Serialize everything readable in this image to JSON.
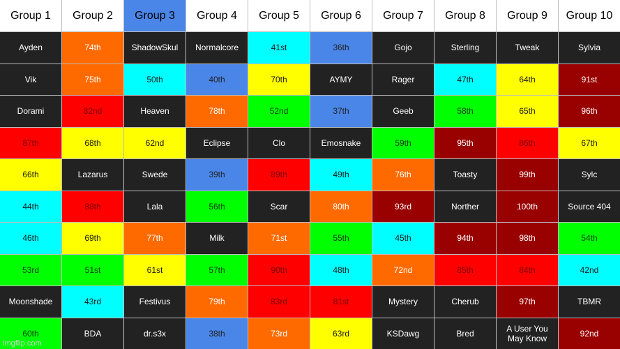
{
  "headers": [
    "Group 1",
    "Group 2",
    "Group 3",
    "Group 4",
    "Group 5",
    "Group 6",
    "Group 7",
    "Group 8",
    "Group 9",
    "Group 10"
  ],
  "highlighted_header": 2,
  "highlight_color": "#4a86e8",
  "color_legend": {
    "dark": "#222222",
    "orange": "#ff6a00",
    "blue": "#4a86e8",
    "cyan": "#00ffff",
    "yellow": "#ffff00",
    "red": "#ff0000",
    "green": "#00ff00",
    "maroon": "#990000"
  },
  "rows": [
    [
      [
        "Ayden",
        "dark"
      ],
      [
        "74th",
        "orange"
      ],
      [
        "ShadowSkul",
        "dark"
      ],
      [
        "Normalcore",
        "dark"
      ],
      [
        "41st",
        "cyan"
      ],
      [
        "36th",
        "blue"
      ],
      [
        "Gojo",
        "dark"
      ],
      [
        "Sterling",
        "dark"
      ],
      [
        "Tweak",
        "dark"
      ],
      [
        "Sylvia",
        "dark"
      ]
    ],
    [
      [
        "Vik",
        "dark"
      ],
      [
        "75th",
        "orange"
      ],
      [
        "50th",
        "cyan"
      ],
      [
        "40th",
        "blue"
      ],
      [
        "70th",
        "yellow"
      ],
      [
        "AYMY",
        "dark"
      ],
      [
        "Rager",
        "dark"
      ],
      [
        "47th",
        "cyan"
      ],
      [
        "64th",
        "yellow"
      ],
      [
        "91st",
        "maroon"
      ]
    ],
    [
      [
        "Dorami",
        "dark"
      ],
      [
        "82nd",
        "red"
      ],
      [
        "Heaven",
        "dark"
      ],
      [
        "78th",
        "orange"
      ],
      [
        "52nd",
        "green"
      ],
      [
        "37th",
        "blue"
      ],
      [
        "Geeb",
        "dark"
      ],
      [
        "58th",
        "green"
      ],
      [
        "65th",
        "yellow"
      ],
      [
        "96th",
        "maroon"
      ]
    ],
    [
      [
        "87th",
        "red"
      ],
      [
        "68th",
        "yellow"
      ],
      [
        "62nd",
        "yellow"
      ],
      [
        "Eclipse",
        "dark"
      ],
      [
        "Clo",
        "dark"
      ],
      [
        "Emosnake",
        "dark"
      ],
      [
        "59th",
        "green"
      ],
      [
        "95th",
        "maroon"
      ],
      [
        "86th",
        "red"
      ],
      [
        "67th",
        "yellow"
      ]
    ],
    [
      [
        "66th",
        "yellow"
      ],
      [
        "Lazarus",
        "dark"
      ],
      [
        "Swede",
        "dark"
      ],
      [
        "39th",
        "blue"
      ],
      [
        "89th",
        "red"
      ],
      [
        "49th",
        "cyan"
      ],
      [
        "76th",
        "orange"
      ],
      [
        "Toasty",
        "dark"
      ],
      [
        "99th",
        "maroon"
      ],
      [
        "Sylc",
        "dark"
      ]
    ],
    [
      [
        "44th",
        "cyan"
      ],
      [
        "88th",
        "red"
      ],
      [
        "Lala",
        "dark"
      ],
      [
        "56th",
        "green"
      ],
      [
        "Scar",
        "dark"
      ],
      [
        "80th",
        "orange"
      ],
      [
        "93rd",
        "maroon"
      ],
      [
        "Norther",
        "dark"
      ],
      [
        "100th",
        "maroon"
      ],
      [
        "Source 404",
        "dark"
      ]
    ],
    [
      [
        "46th",
        "cyan"
      ],
      [
        "69th",
        "yellow"
      ],
      [
        "77th",
        "orange"
      ],
      [
        "Milk",
        "dark"
      ],
      [
        "71st",
        "orange"
      ],
      [
        "55th",
        "green"
      ],
      [
        "45th",
        "cyan"
      ],
      [
        "94th",
        "maroon"
      ],
      [
        "98th",
        "maroon"
      ],
      [
        "54th",
        "green"
      ]
    ],
    [
      [
        "53rd",
        "green"
      ],
      [
        "51st",
        "green"
      ],
      [
        "61st",
        "yellow"
      ],
      [
        "57th",
        "green"
      ],
      [
        "90th",
        "red"
      ],
      [
        "48th",
        "cyan"
      ],
      [
        "72nd",
        "orange"
      ],
      [
        "85th",
        "red"
      ],
      [
        "84th",
        "red"
      ],
      [
        "42nd",
        "cyan"
      ]
    ],
    [
      [
        "Moonshade",
        "dark"
      ],
      [
        "43rd",
        "cyan"
      ],
      [
        "Festivus",
        "dark"
      ],
      [
        "79th",
        "orange"
      ],
      [
        "83rd",
        "red"
      ],
      [
        "81st",
        "red"
      ],
      [
        "Mystery",
        "dark"
      ],
      [
        "Cherub",
        "dark"
      ],
      [
        "97th",
        "maroon"
      ],
      [
        "TBMR",
        "dark"
      ]
    ],
    [
      [
        "60th",
        "green"
      ],
      [
        "BDA",
        "dark"
      ],
      [
        "dr.s3x",
        "dark"
      ],
      [
        "38th",
        "blue"
      ],
      [
        "73rd",
        "orange"
      ],
      [
        "63rd",
        "yellow"
      ],
      [
        "KSDawg",
        "dark"
      ],
      [
        "Bred",
        "dark"
      ],
      [
        "A User You May Know",
        "dark"
      ],
      [
        "92nd",
        "maroon"
      ]
    ]
  ],
  "watermark": "imgflip.com"
}
